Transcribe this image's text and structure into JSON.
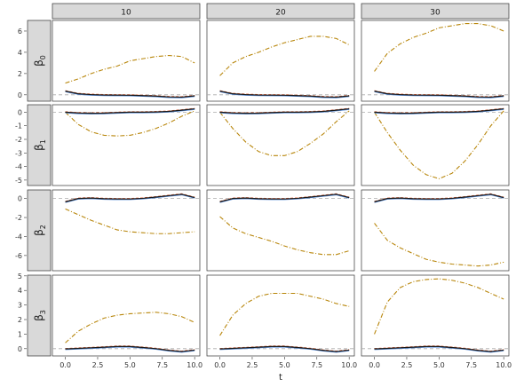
{
  "chart_data": {
    "type": "line",
    "layout": "facet-grid",
    "xlabel": "t",
    "x_ticks": [
      "0.0",
      "2.5",
      "5.0",
      "7.5",
      "10.0"
    ],
    "xlim": [
      -1,
      10.4
    ],
    "col_facets": [
      "10",
      "20",
      "30"
    ],
    "row_facets": [
      {
        "symbol": "β",
        "sub": "0",
        "ylim": [
          -0.6,
          7.0
        ],
        "ticks": [
          0,
          2,
          4,
          6
        ]
      },
      {
        "symbol": "β",
        "sub": "1",
        "ylim": [
          -5.4,
          0.55
        ],
        "ticks": [
          0,
          -1,
          -2,
          -3,
          -4,
          -5
        ]
      },
      {
        "symbol": "β",
        "sub": "2",
        "ylim": [
          -7.6,
          0.9
        ],
        "ticks": [
          0,
          -2,
          -4,
          -6
        ]
      },
      {
        "symbol": "β",
        "sub": "3",
        "ylim": [
          -0.5,
          5.05
        ],
        "ticks": [
          0,
          1,
          2,
          3,
          4,
          5
        ]
      }
    ],
    "reference_line": {
      "y": 0,
      "color": "#aaaaaa",
      "style": "dashed"
    },
    "series_colors": {
      "true": "#1a1a1a",
      "est_red": "#e0623a",
      "est_blue": "#5a8ed9",
      "est_gold": "#b8860b"
    },
    "x": [
      0,
      1,
      2,
      3,
      4,
      5,
      6,
      7,
      8,
      9,
      10
    ],
    "panels": [
      [
        {
          "near": [
            0.35,
            0.1,
            0.02,
            -0.02,
            -0.03,
            -0.04,
            -0.08,
            -0.12,
            -0.2,
            -0.22,
            -0.1
          ],
          "dotdash": [
            1.1,
            1.5,
            2.0,
            2.4,
            2.7,
            3.2,
            3.4,
            3.6,
            3.7,
            3.6,
            3.0
          ]
        },
        {
          "near": [
            0.35,
            0.1,
            0.02,
            -0.02,
            -0.03,
            -0.04,
            -0.08,
            -0.12,
            -0.2,
            -0.22,
            -0.1
          ],
          "dotdash": [
            1.8,
            3.0,
            3.6,
            4.0,
            4.5,
            4.9,
            5.2,
            5.5,
            5.5,
            5.3,
            4.7
          ]
        },
        {
          "near": [
            0.35,
            0.1,
            0.02,
            -0.02,
            -0.03,
            -0.04,
            -0.08,
            -0.12,
            -0.2,
            -0.22,
            -0.1
          ],
          "dotdash": [
            2.2,
            3.9,
            4.8,
            5.4,
            5.8,
            6.3,
            6.5,
            6.7,
            6.7,
            6.5,
            6.0
          ]
        }
      ],
      [
        {
          "near": [
            0.0,
            -0.06,
            -0.08,
            -0.07,
            -0.03,
            0.0,
            0.0,
            0.02,
            0.06,
            0.15,
            0.25
          ],
          "dotdash": [
            0.0,
            -0.9,
            -1.45,
            -1.7,
            -1.75,
            -1.7,
            -1.5,
            -1.2,
            -0.8,
            -0.3,
            0.1
          ]
        },
        {
          "near": [
            0.0,
            -0.06,
            -0.08,
            -0.07,
            -0.03,
            0.0,
            0.0,
            0.02,
            0.06,
            0.15,
            0.25
          ],
          "dotdash": [
            0.0,
            -1.2,
            -2.2,
            -2.9,
            -3.2,
            -3.2,
            -2.9,
            -2.3,
            -1.6,
            -0.7,
            0.1
          ]
        },
        {
          "near": [
            0.0,
            -0.06,
            -0.08,
            -0.07,
            -0.03,
            0.0,
            0.0,
            0.02,
            0.06,
            0.15,
            0.25
          ],
          "dotdash": [
            0.0,
            -1.5,
            -2.8,
            -3.9,
            -4.6,
            -4.9,
            -4.5,
            -3.6,
            -2.4,
            -1.0,
            0.1
          ]
        }
      ],
      [
        {
          "near": [
            -0.35,
            0.0,
            0.05,
            -0.02,
            -0.05,
            -0.05,
            0.02,
            0.15,
            0.3,
            0.45,
            0.1
          ],
          "dotdash": [
            -1.1,
            -1.7,
            -2.3,
            -2.8,
            -3.3,
            -3.5,
            -3.6,
            -3.7,
            -3.7,
            -3.6,
            -3.5
          ]
        },
        {
          "near": [
            -0.35,
            0.0,
            0.05,
            -0.02,
            -0.05,
            -0.05,
            0.02,
            0.15,
            0.3,
            0.45,
            0.1
          ],
          "dotdash": [
            -1.9,
            -3.1,
            -3.7,
            -4.1,
            -4.5,
            -5.0,
            -5.4,
            -5.7,
            -5.9,
            -5.9,
            -5.5
          ]
        },
        {
          "near": [
            -0.35,
            0.0,
            0.05,
            -0.02,
            -0.05,
            -0.05,
            0.02,
            0.15,
            0.3,
            0.45,
            0.1
          ],
          "dotdash": [
            -2.6,
            -4.4,
            -5.2,
            -5.8,
            -6.4,
            -6.7,
            -6.9,
            -7.0,
            -7.1,
            -7.0,
            -6.7
          ]
        }
      ],
      [
        {
          "near": [
            -0.02,
            0.02,
            0.06,
            0.1,
            0.15,
            0.15,
            0.08,
            0.0,
            -0.12,
            -0.2,
            -0.1
          ],
          "dotdash": [
            0.4,
            1.2,
            1.7,
            2.1,
            2.3,
            2.4,
            2.45,
            2.5,
            2.4,
            2.2,
            1.8
          ]
        },
        {
          "near": [
            -0.02,
            0.02,
            0.06,
            0.1,
            0.15,
            0.15,
            0.08,
            0.0,
            -0.12,
            -0.2,
            -0.1
          ],
          "dotdash": [
            0.9,
            2.3,
            3.1,
            3.6,
            3.8,
            3.8,
            3.8,
            3.6,
            3.4,
            3.1,
            2.9
          ]
        },
        {
          "near": [
            -0.02,
            0.02,
            0.06,
            0.1,
            0.15,
            0.15,
            0.08,
            0.0,
            -0.12,
            -0.2,
            -0.1
          ],
          "dotdash": [
            1.0,
            3.2,
            4.2,
            4.6,
            4.75,
            4.8,
            4.7,
            4.5,
            4.2,
            3.8,
            3.4
          ]
        }
      ]
    ]
  }
}
